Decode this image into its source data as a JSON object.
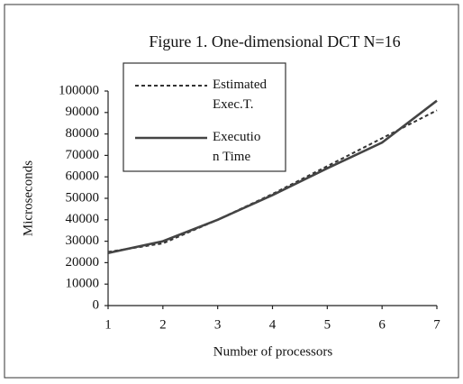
{
  "chart_data": {
    "type": "line",
    "title": "Figure 1. One-dimensional DCT N=16",
    "x_label": "Number of processors",
    "y_label": "Microseconds",
    "x": [
      1,
      2,
      3,
      4,
      5,
      6,
      7
    ],
    "series": [
      {
        "name": "Estimated Exec.T.",
        "color": "#333333",
        "dashed": true,
        "values": [
          25000,
          29000,
          40000,
          52000,
          65000,
          78000,
          91000
        ]
      },
      {
        "name": "Executio n Time",
        "color": "#444444",
        "dashed": false,
        "values": [
          24500,
          30000,
          40000,
          51500,
          64000,
          76000,
          95500
        ]
      }
    ],
    "xlim": [
      1,
      7
    ],
    "xticks": [
      1,
      2,
      3,
      4,
      5,
      6,
      7
    ],
    "ylim": [
      0,
      100000
    ],
    "yticks": [
      0,
      10000,
      20000,
      30000,
      40000,
      50000,
      60000,
      70000,
      80000,
      90000,
      100000
    ],
    "grid": false
  }
}
